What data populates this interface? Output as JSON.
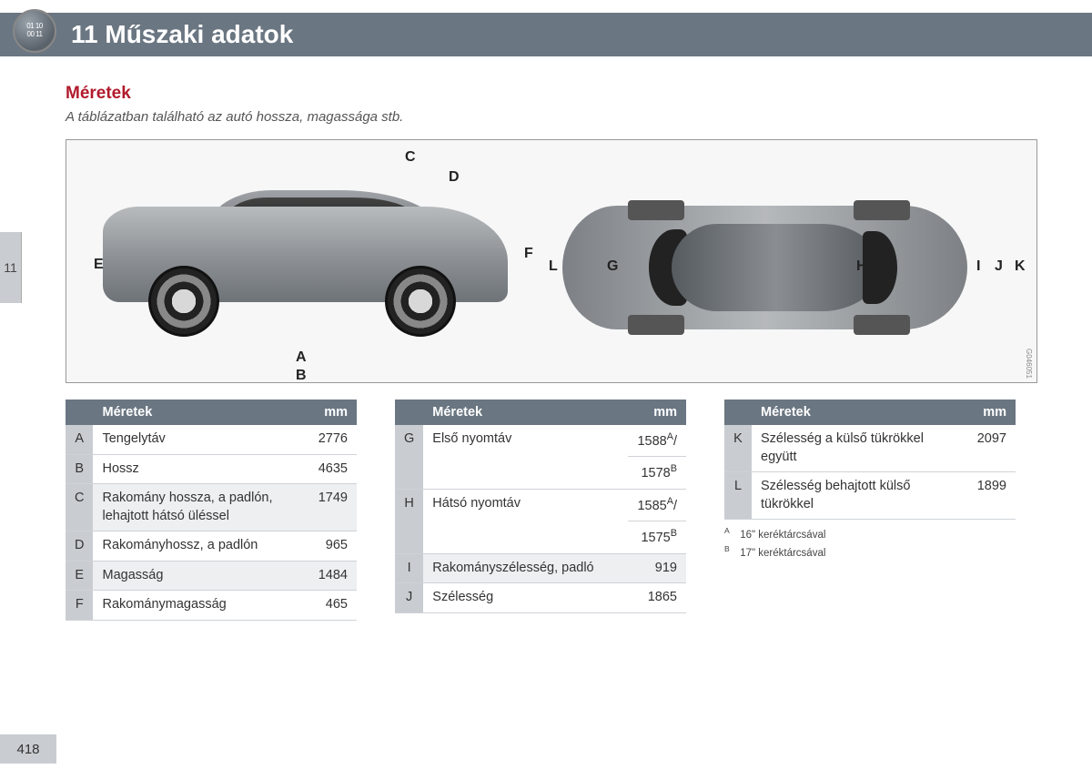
{
  "header": {
    "chapter": "11",
    "title": "11 Műszaki adatok"
  },
  "badge": {
    "line1": "01 10",
    "line2": "00 11"
  },
  "sideTab": "11",
  "pageNumber": "418",
  "section": {
    "title": "Méretek",
    "subtitle": "A táblázatban található az autó hossza, magassága stb."
  },
  "diagram": {
    "labels": [
      "A",
      "B",
      "C",
      "D",
      "E",
      "F",
      "G",
      "H",
      "I",
      "J",
      "K",
      "L"
    ],
    "imgCode": "G046051"
  },
  "tableHeaders": {
    "dim": "Méretek",
    "mm": "mm"
  },
  "tables": [
    {
      "rows": [
        {
          "k": "A",
          "label": "Tengelytáv",
          "v": "2776"
        },
        {
          "k": "B",
          "label": "Hossz",
          "v": "4635"
        },
        {
          "k": "C",
          "label": "Rakomány hossza, a padlón, lehajtott hátsó üléssel",
          "v": "1749",
          "shade": true
        },
        {
          "k": "D",
          "label": "Rakományhossz, a padlón",
          "v": "965"
        },
        {
          "k": "E",
          "label": "Magasság",
          "v": "1484",
          "shade": true
        },
        {
          "k": "F",
          "label": "Rakománymagasság",
          "v": "465"
        }
      ]
    },
    {
      "rows": [
        {
          "k": "G",
          "label": "Első nyomtáv",
          "v": "1588<sup>A</sup>/",
          "v2": "1578<sup>B</sup>"
        },
        {
          "k": "H",
          "label": "Hátsó nyomtáv",
          "v": "1585<sup>A</sup>/",
          "v2": "1575<sup>B</sup>"
        },
        {
          "k": "I",
          "label": "Rakományszélesség, padló",
          "v": "919",
          "shade": true
        },
        {
          "k": "J",
          "label": "Szélesség",
          "v": "1865"
        }
      ]
    },
    {
      "rows": [
        {
          "k": "K",
          "label": "Szélesség a külső tükrökkel együtt",
          "v": "2097"
        },
        {
          "k": "L",
          "label": "Szélesség behajtott külső tükrökkel",
          "v": "1899"
        }
      ]
    }
  ],
  "footnotes": [
    {
      "k": "A",
      "text": "16\" keréktárcsával"
    },
    {
      "k": "B",
      "text": "17\" keréktárcsával"
    }
  ]
}
